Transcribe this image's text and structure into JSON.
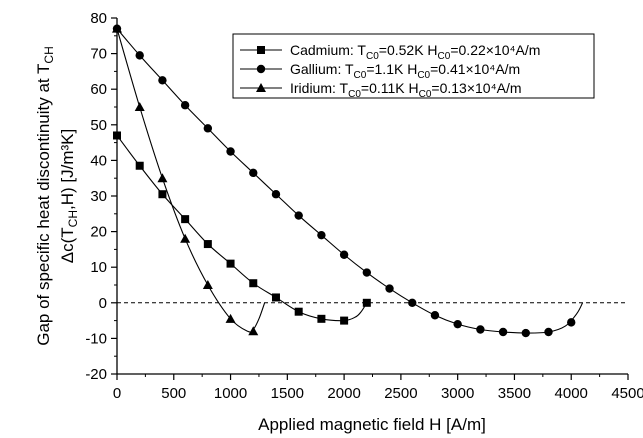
{
  "chart_data": {
    "type": "line",
    "xlabel": "Applied magnetic field   H [A/m]",
    "ylabel_line1": "Gap of specific heat discontinuity at T",
    "ylabel_line1_sub": "CH",
    "ylabel_line2_pre": "Δc(T",
    "ylabel_line2_sub": "CH",
    "ylabel_line2_post": ",H) [J/m³K]",
    "xlim": [
      0,
      4500
    ],
    "ylim": [
      -20,
      80
    ],
    "x_ticks": [
      0,
      500,
      1000,
      1500,
      2000,
      2500,
      3000,
      3500,
      4000,
      4500
    ],
    "y_ticks": [
      -20,
      -10,
      0,
      10,
      20,
      30,
      40,
      50,
      60,
      70,
      80
    ],
    "zero_line": "dashed",
    "legend_position": "top-right",
    "series": [
      {
        "name": "Cadmium",
        "marker": "square",
        "legend": {
          "name": "Cadmium: T",
          "tsub": "C0",
          "tval": "=0.52K  H",
          "hsub": "C0",
          "hval": "=0.22×10⁴A/m"
        },
        "x": [
          0,
          200,
          400,
          600,
          800,
          1000,
          1200,
          1400,
          1600,
          1800,
          2000,
          2200
        ],
        "y": [
          47,
          38.5,
          30.5,
          23.5,
          16.5,
          11,
          5.5,
          1.5,
          -2.5,
          -4.5,
          -5,
          0
        ],
        "curve_x": [
          0,
          200,
          400,
          600,
          800,
          1000,
          1200,
          1400,
          1600,
          1800,
          2000,
          2100,
          2150,
          2200
        ],
        "curve_y": [
          47,
          38.5,
          30.5,
          23.5,
          16.5,
          11,
          5.5,
          1.5,
          -2.5,
          -4.5,
          -5,
          -4,
          -2.5,
          0
        ]
      },
      {
        "name": "Gallium",
        "marker": "circle",
        "legend": {
          "name": "Gallium: T",
          "tsub": "C0",
          "tval": "=1.1K  H",
          "hsub": "C0",
          "hval": "=0.41×10⁴A/m"
        },
        "x": [
          0,
          200,
          400,
          600,
          800,
          1000,
          1200,
          1400,
          1600,
          1800,
          2000,
          2200,
          2400,
          2600,
          2800,
          3000,
          3200,
          3400,
          3600,
          3800,
          4000,
          4100
        ],
        "y": [
          77,
          69.5,
          62.5,
          55.5,
          49,
          42.5,
          36.5,
          30.5,
          24.5,
          19,
          13.5,
          8.5,
          4,
          0,
          -3.5,
          -6,
          -7.5,
          -8.2,
          -8.5,
          -8.2,
          -5.5,
          0
        ],
        "curve_x": [
          0,
          200,
          400,
          600,
          800,
          1000,
          1200,
          1400,
          1600,
          1800,
          2000,
          2200,
          2400,
          2600,
          2800,
          3000,
          3200,
          3400,
          3600,
          3800,
          3950,
          4050,
          4100
        ],
        "curve_y": [
          77,
          69.5,
          62.5,
          55.5,
          49,
          42.5,
          36.5,
          30.5,
          24.5,
          19,
          13.5,
          8.5,
          4,
          0,
          -3.5,
          -6,
          -7.5,
          -8.2,
          -8.5,
          -8.2,
          -6.5,
          -3,
          0
        ]
      },
      {
        "name": "Iridium",
        "marker": "triangle",
        "legend": {
          "name": "Iridium: T",
          "tsub": "C0",
          "tval": "=0.11K  H",
          "hsub": "C0",
          "hval": "=0.13×10⁴A/m"
        },
        "x": [
          0,
          200,
          400,
          600,
          800,
          1000,
          1200,
          1300
        ],
        "y": [
          77,
          55,
          35,
          18,
          5,
          -4.5,
          -8,
          0
        ],
        "curve_x": [
          0,
          200,
          400,
          600,
          800,
          1000,
          1150,
          1200,
          1250,
          1300
        ],
        "curve_y": [
          77,
          55,
          35,
          18,
          5,
          -4.5,
          -8,
          -7.5,
          -4.5,
          0
        ]
      }
    ]
  }
}
